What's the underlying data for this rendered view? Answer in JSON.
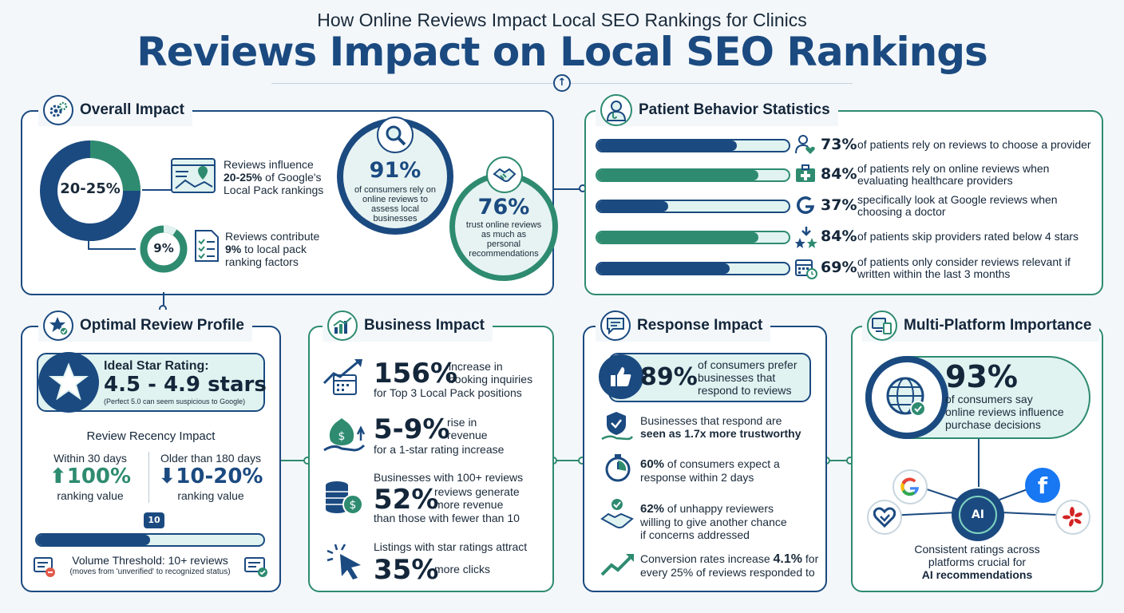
{
  "header": {
    "subtitle": "How Online Reviews Impact Local SEO Rankings for Clinics",
    "title": "Reviews Impact on Local SEO Rankings"
  },
  "overall": {
    "title": "Overall Impact",
    "donut1": {
      "label": "20-25%",
      "text_pre": "Reviews influence",
      "text_bold": "20-25%",
      "text_mid": "of Google's",
      "text_post": "Local Pack rankings"
    },
    "donut2": {
      "label": "9%",
      "text_pre": "Reviews contribute",
      "text_bold": "9%",
      "text_post": "to local pack ranking factors",
      "line2": "ranking factors"
    },
    "circle91": {
      "value": "91%",
      "text": "of consumers rely on online reviews to assess local businesses"
    },
    "circle76": {
      "value": "76%",
      "text": "trust online reviews as much as personal recommendations"
    }
  },
  "patient": {
    "title": "Patient Behavior Statistics",
    "stats": [
      {
        "pct": "73%",
        "value": 73,
        "color": "#1b4a80",
        "icon": "patient-heart-icon",
        "line1": "of patients rely on reviews to choose a provider",
        "line2": ""
      },
      {
        "pct": "84%",
        "value": 84,
        "color": "#2e8b70",
        "icon": "medical-kit-icon",
        "line1": "of patients rely on online reviews when",
        "line2": "evaluating healthcare providers"
      },
      {
        "pct": "37%",
        "value": 37,
        "color": "#1b4a80",
        "icon": "google-icon",
        "line1": "specifically look at Google reviews when",
        "line2": "choosing a doctor"
      },
      {
        "pct": "84%",
        "value": 84,
        "color": "#2e8b70",
        "icon": "stars-down-icon",
        "line1": "of patients skip providers rated below 4 stars",
        "line2": ""
      },
      {
        "pct": "69%",
        "value": 69,
        "color": "#1b4a80",
        "icon": "calendar-clock-icon",
        "line1": "of patients only consider reviews relevant if",
        "line2": "written within the last 3 months"
      }
    ]
  },
  "optimal": {
    "title": "Optimal Review Profile",
    "ideal_label": "Ideal Star Rating:",
    "ideal_value": "4.5 - 4.9 stars",
    "ideal_note": "(Perfect 5.0 can seem suspicious to Google)",
    "recency_title": "Review Recency Impact",
    "recent_label": "Within 30 days",
    "recent_value": "100%",
    "recent_sub": "ranking value",
    "old_label": "Older than 180 days",
    "old_value": "10-20%",
    "old_sub": "ranking value",
    "threshold_marker": "10",
    "threshold_fill": 0.5,
    "threshold_label": "Volume Threshold: 10+ reviews",
    "threshold_note": "(moves from 'unverified' to recognized status)"
  },
  "business": {
    "title": "Business Impact",
    "s1_big": "156%",
    "s1_a": "increase in",
    "s1_b": "booking inquiries",
    "s1_c": "for Top 3 Local Pack positions",
    "s2_big": "5-9%",
    "s2_a": "rise in",
    "s2_b": "revenue",
    "s2_c": "for a 1-star rating increase",
    "s3_pre": "Businesses with 100+ reviews",
    "s3_big": "52%",
    "s3_a": "reviews generate",
    "s3_b": "more revenue",
    "s3_c": "than those with fewer than 10",
    "s4_pre": "Listings with star ratings attract",
    "s4_big": "35%",
    "s4_a": "more clicks"
  },
  "response": {
    "title": "Response Impact",
    "box_big": "89%",
    "box_a": "of consumers prefer",
    "box_b": "businesses that",
    "box_c": "respond to reviews",
    "r1_a": "Businesses that respond are",
    "r1_b": "seen as 1.7x more trustworthy",
    "r2_bold": "60%",
    "r2_a": "of consumers expect a",
    "r2_b": "response within 2 days",
    "r3_bold": "62%",
    "r3_a": "of unhappy reviewers",
    "r3_b": "willing to give another chance",
    "r3_c": "if concerns addressed",
    "r4_a": "Conversion rates increase",
    "r4_bold": "4.1%",
    "r4_b": "for",
    "r4_c": "every 25% of reviews responded to"
  },
  "multi": {
    "title": "Multi-Platform Importance",
    "big": "93%",
    "line1": "of consumers say",
    "line2": "online reviews influence",
    "line3": "purchase decisions",
    "hub_label": "AI",
    "platform_icons": [
      "google-icon",
      "facebook-icon",
      "healthgrades-icon",
      "yelp-icon"
    ],
    "footer1": "Consistent ratings across",
    "footer2": "platforms crucial for",
    "footer3": "AI recommendations"
  }
}
